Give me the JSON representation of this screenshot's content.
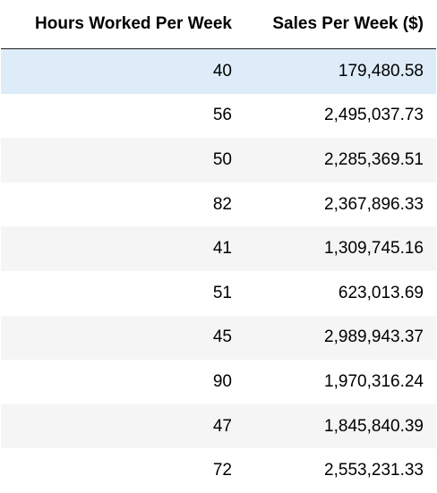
{
  "table": {
    "columns": [
      "Hours Worked Per Week",
      "Sales Per Week ($)"
    ],
    "rows": [
      [
        "40",
        "179,480.58"
      ],
      [
        "56",
        "2,495,037.73"
      ],
      [
        "50",
        "2,285,369.51"
      ],
      [
        "82",
        "2,367,896.33"
      ],
      [
        "41",
        "1,309,745.16"
      ],
      [
        "51",
        "623,013.69"
      ],
      [
        "45",
        "2,989,943.37"
      ],
      [
        "90",
        "1,970,316.24"
      ],
      [
        "47",
        "1,845,840.39"
      ],
      [
        "72",
        "2,553,231.33"
      ]
    ],
    "selected_row": 0
  },
  "colors": {
    "selected_row_bg": "#ddecf8",
    "striped_row_bg": "#f5f5f5",
    "header_rule": "#1f1f1f"
  }
}
